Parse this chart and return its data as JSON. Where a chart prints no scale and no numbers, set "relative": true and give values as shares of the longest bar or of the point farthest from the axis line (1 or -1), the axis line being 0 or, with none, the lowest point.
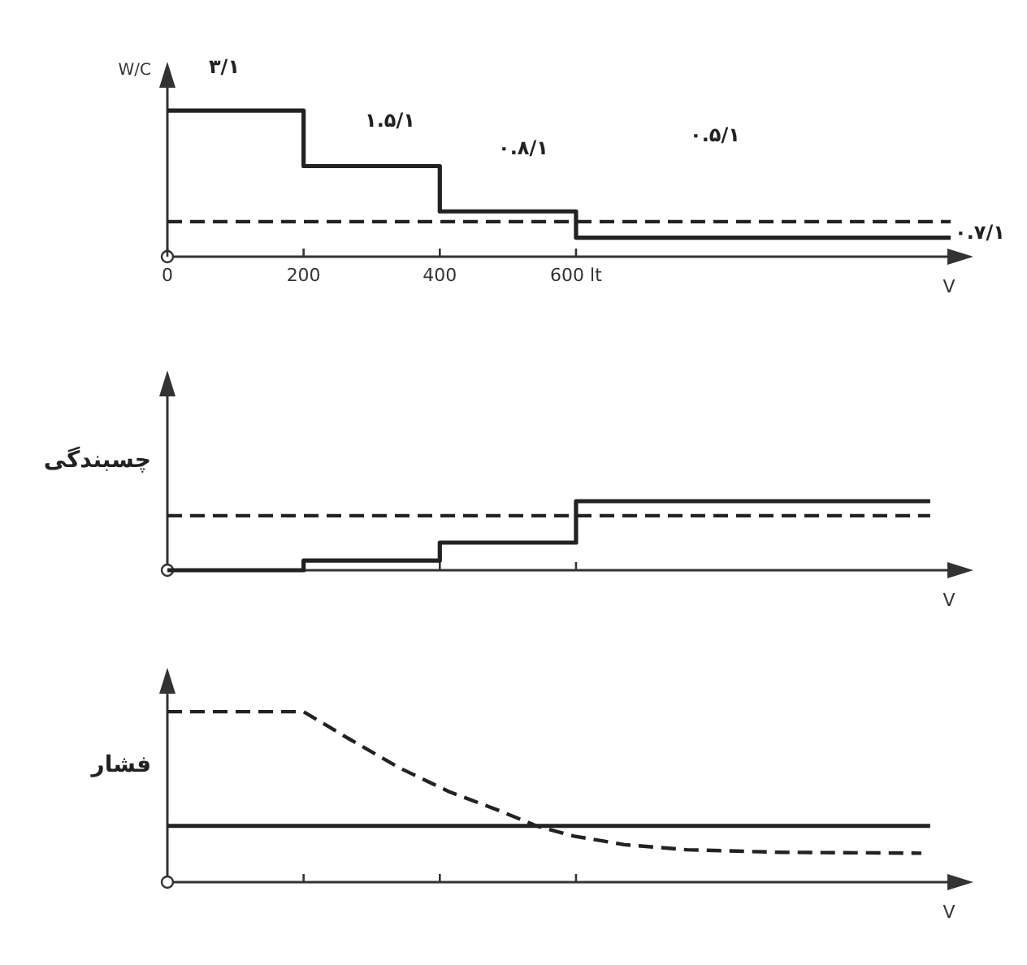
{
  "chart_data": [
    {
      "type": "step",
      "ylabel": "W/C",
      "xlabel": "V",
      "relative": true,
      "xlim": [
        0,
        1150
      ],
      "xticks": [
        0,
        200,
        400,
        {
          "value": 600,
          "label": "600 lt"
        }
      ],
      "series": [
        {
          "color": "#222222",
          "line_style": "solid",
          "x": [
            0,
            200,
            400,
            600,
            1150
          ],
          "values": [
            1,
            0.62,
            0.31,
            0.13,
            0.13
          ]
        },
        {
          "color": "#222222",
          "line_style": "dashed",
          "x": [
            0,
            1150
          ],
          "values": [
            0.24,
            0.24
          ]
        }
      ],
      "annotations": [
        "۳/۱",
        "۱.۵/۱",
        "۰.۸/۱",
        "۰.۵/۱",
        "۰.۷/۱"
      ]
    },
    {
      "type": "step",
      "ylabel": "چسبندگی",
      "xlabel": "V",
      "relative": true,
      "tick_labels": false,
      "xlim": [
        0,
        1150
      ],
      "xticks": [
        200,
        400,
        600
      ],
      "series": [
        {
          "color": "#222222",
          "line_style": "solid",
          "x": [
            0,
            200,
            400,
            600,
            1120
          ],
          "values": [
            0,
            0.14,
            0.4,
            1,
            1
          ]
        },
        {
          "color": "#222222",
          "line_style": "dashed",
          "x": [
            0,
            1120
          ],
          "values": [
            0.79,
            0.79
          ]
        }
      ]
    },
    {
      "type": "line",
      "ylabel": "فشار",
      "xlabel": "V",
      "relative": true,
      "tick_labels": false,
      "xlim": [
        0,
        1150
      ],
      "xticks": [
        200,
        400,
        600
      ],
      "series": [
        {
          "color": "#222222",
          "line_style": "solid",
          "x": [
            0,
            1120
          ],
          "values": [
            0.33,
            0.33
          ]
        },
        {
          "color": "#222222",
          "line_style": "dashed",
          "x": [
            0,
            200,
            267,
            341,
            414,
            487,
            542,
            597,
            671,
            763,
            900,
            1107
          ],
          "values": [
            1,
            1,
            0.84,
            0.67,
            0.53,
            0.42,
            0.33,
            0.27,
            0.22,
            0.19,
            0.175,
            0.17
          ]
        }
      ]
    }
  ]
}
